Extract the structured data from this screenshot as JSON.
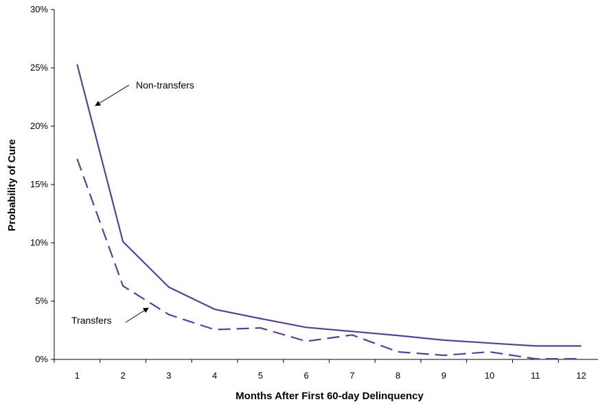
{
  "chart_data": {
    "type": "line",
    "title": "",
    "xlabel": "Months After First 60-day Delinquency",
    "ylabel": "Probability of Cure",
    "x": [
      1,
      2,
      3,
      4,
      5,
      6,
      7,
      8,
      9,
      10,
      11,
      12
    ],
    "x_tick_labels": [
      "1",
      "2",
      "3",
      "4",
      "5",
      "6",
      "7",
      "8",
      "9",
      "10",
      "11",
      "12"
    ],
    "y_ticks": [
      0,
      5,
      10,
      15,
      20,
      25,
      30
    ],
    "y_tick_labels": [
      "0%",
      "5%",
      "10%",
      "15%",
      "20%",
      "25%",
      "30%"
    ],
    "ylim": [
      0,
      30
    ],
    "grid": false,
    "legend": "none",
    "series": [
      {
        "name": "Non-transfers",
        "values": [
          25.3,
          10.1,
          6.2,
          4.3,
          3.5,
          2.75,
          2.4,
          2.05,
          1.65,
          1.4,
          1.15,
          1.15
        ],
        "style": "solid",
        "color": "#5b3f95"
      },
      {
        "name": "Transfers",
        "values": [
          17.2,
          6.3,
          3.85,
          2.55,
          2.7,
          1.55,
          2.1,
          0.65,
          0.35,
          0.65,
          0.05,
          0.05
        ],
        "style": "dashed",
        "color": "#5b3f95"
      }
    ],
    "annotations": [
      {
        "text": "Non-transfers",
        "points_to": "Non-transfers"
      },
      {
        "text": "Transfers",
        "points_to": "Transfers"
      }
    ]
  }
}
